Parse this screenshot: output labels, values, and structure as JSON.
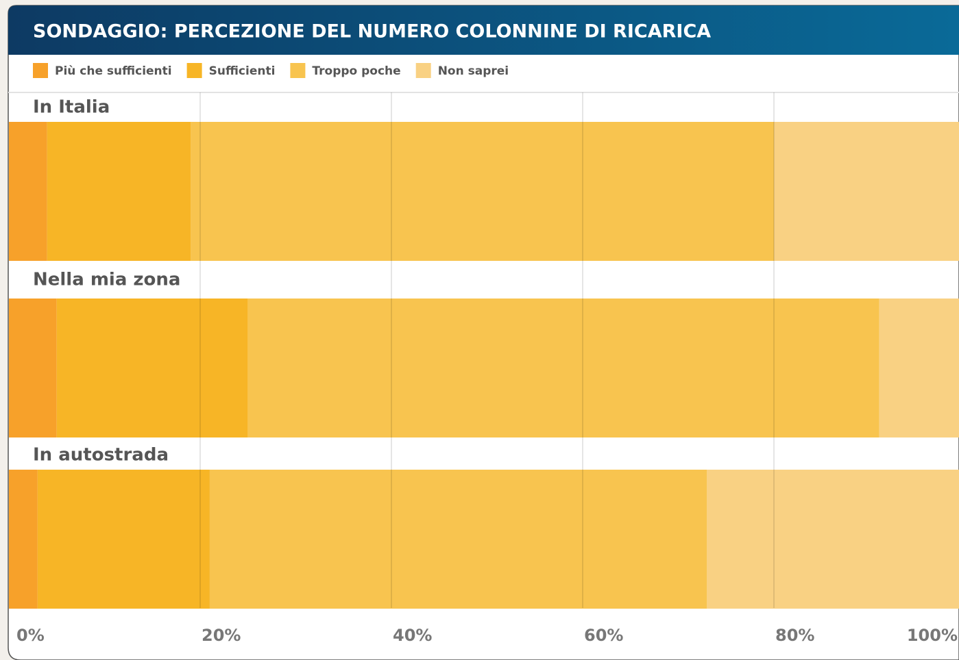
{
  "chart_data": {
    "type": "stacked_bar_horizontal",
    "title": "SONDAGGIO: PERCEZIONE DEL NUMERO COLONNINE DI RICARICA",
    "categories": [
      "In Italia",
      "Nella mia zona",
      "In autostrada"
    ],
    "series": [
      {
        "name": "Più che sufficienti",
        "color": "#f7a12a",
        "values": [
          4,
          5,
          3
        ]
      },
      {
        "name": "Sufficienti",
        "color": "#f7b526",
        "values": [
          15,
          20,
          18
        ]
      },
      {
        "name": "Troppo poche",
        "color": "#f8c44f",
        "values": [
          61,
          66,
          52
        ]
      },
      {
        "name": "Non saprei",
        "color": "#f9d183",
        "values": [
          20,
          9,
          27
        ]
      }
    ],
    "xlim": [
      0,
      100
    ],
    "xticks": [
      {
        "value": 0,
        "label": "0%"
      },
      {
        "value": 20,
        "label": "20%"
      },
      {
        "value": 40,
        "label": "40%"
      },
      {
        "value": 60,
        "label": "60%"
      },
      {
        "value": 80,
        "label": "80%"
      },
      {
        "value": 100,
        "label": "100%"
      }
    ],
    "grid": true,
    "legend": "top"
  }
}
